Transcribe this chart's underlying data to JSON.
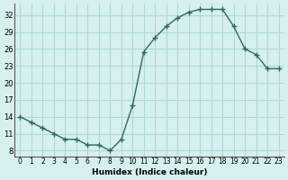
{
  "x": [
    0,
    1,
    2,
    3,
    4,
    5,
    6,
    7,
    8,
    9,
    10,
    11,
    12,
    13,
    14,
    15,
    16,
    17,
    18,
    19,
    20,
    21,
    22,
    23
  ],
  "y": [
    14,
    13,
    12,
    11,
    10,
    10,
    9,
    9,
    8,
    10,
    16,
    25.5,
    28,
    30,
    31.5,
    32.5,
    33,
    33,
    33,
    30,
    26,
    25,
    22.5,
    22.5
  ],
  "yticks": [
    8,
    11,
    14,
    17,
    20,
    23,
    26,
    29,
    32
  ],
  "xticks": [
    0,
    1,
    2,
    3,
    4,
    5,
    6,
    7,
    8,
    9,
    10,
    11,
    12,
    13,
    14,
    15,
    16,
    17,
    18,
    19,
    20,
    21,
    22,
    23
  ],
  "xlabel": "Humidex (Indice chaleur)",
  "ylim": [
    7,
    34
  ],
  "xlim": [
    -0.5,
    23.5
  ],
  "line_color": "#2e6b5e",
  "marker": "+",
  "bg_color": "#d6f0ef",
  "grid_color": "#b0d8d5"
}
